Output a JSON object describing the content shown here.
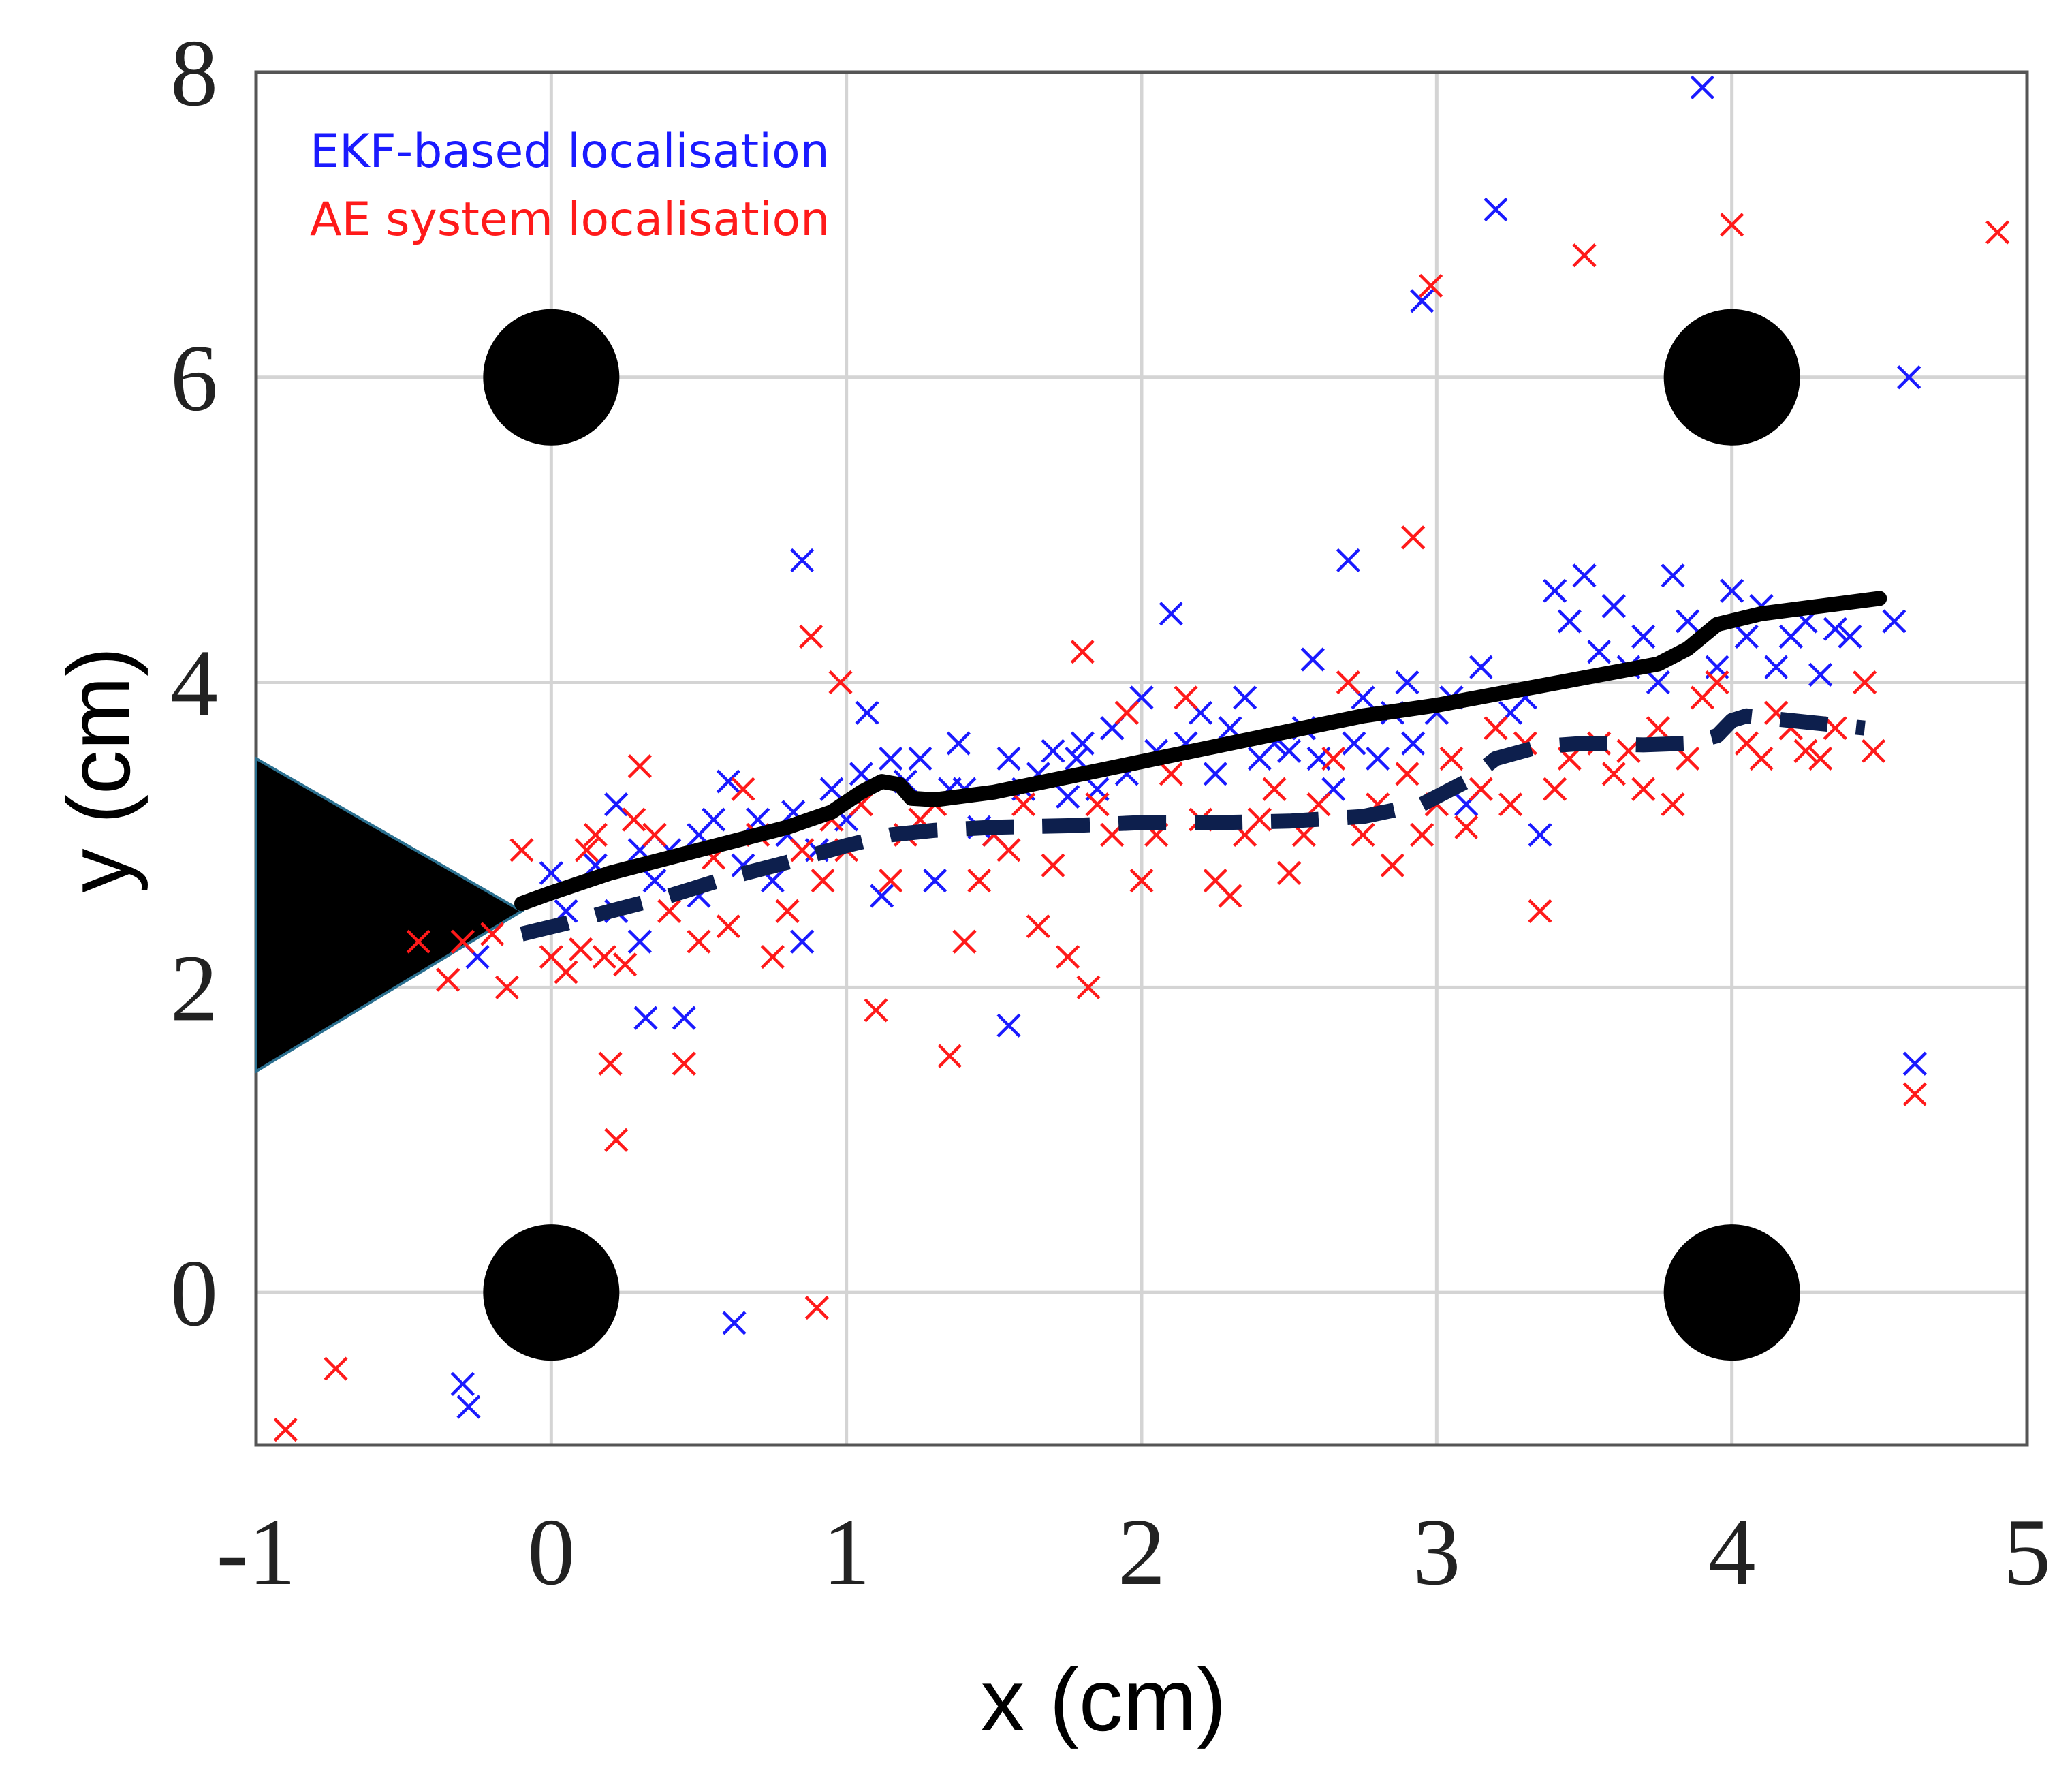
{
  "chart_data": {
    "type": "scatter",
    "title": "",
    "xlabel": "x (cm)",
    "ylabel": "y (cm)",
    "xlim": [
      -1,
      5
    ],
    "ylim": [
      -1,
      8
    ],
    "xticks": [
      "-1",
      "0",
      "1",
      "2",
      "3",
      "4",
      "5"
    ],
    "yticks": [
      "0",
      "2",
      "4",
      "6",
      "8"
    ],
    "grid": true,
    "legend_placement": "top-left",
    "legend": [
      {
        "label": "EKF-based localisation",
        "color": "#1a1aff"
      },
      {
        "label": "AE system localisation",
        "color": "#ff1a1a"
      }
    ],
    "sensors": [
      {
        "x": 0,
        "y": 6
      },
      {
        "x": 4,
        "y": 6
      },
      {
        "x": 0,
        "y": 0
      },
      {
        "x": 4,
        "y": 0
      }
    ],
    "source_triangle": [
      {
        "x": -1,
        "y": 3.5
      },
      {
        "x": -0.1,
        "y": 2.5
      },
      {
        "x": -1,
        "y": 1.45
      }
    ],
    "series": [
      {
        "name": "EKF-based localisation",
        "marker": "x",
        "color": "#1a1aff",
        "points": [
          [
            -0.3,
            -0.6
          ],
          [
            -0.28,
            -0.75
          ],
          [
            -0.25,
            2.2
          ],
          [
            0.0,
            2.75
          ],
          [
            0.05,
            2.5
          ],
          [
            0.15,
            2.8
          ],
          [
            0.22,
            2.5
          ],
          [
            0.22,
            3.2
          ],
          [
            0.3,
            2.9
          ],
          [
            0.3,
            2.3
          ],
          [
            0.32,
            1.8
          ],
          [
            0.35,
            2.7
          ],
          [
            0.4,
            2.9
          ],
          [
            0.45,
            1.8
          ],
          [
            0.5,
            3.0
          ],
          [
            0.5,
            2.6
          ],
          [
            0.55,
            3.1
          ],
          [
            0.6,
            3.35
          ],
          [
            0.62,
            -0.2
          ],
          [
            0.65,
            2.8
          ],
          [
            0.7,
            3.1
          ],
          [
            0.75,
            2.7
          ],
          [
            0.8,
            3.0
          ],
          [
            0.82,
            3.15
          ],
          [
            0.85,
            4.8
          ],
          [
            0.85,
            2.3
          ],
          [
            0.9,
            2.9
          ],
          [
            0.95,
            3.3
          ],
          [
            1.0,
            3.1
          ],
          [
            1.05,
            3.4
          ],
          [
            1.07,
            3.8
          ],
          [
            1.12,
            2.6
          ],
          [
            1.15,
            3.5
          ],
          [
            1.2,
            3.35
          ],
          [
            1.25,
            3.5
          ],
          [
            1.3,
            2.7
          ],
          [
            1.35,
            3.3
          ],
          [
            1.38,
            3.6
          ],
          [
            1.4,
            3.3
          ],
          [
            1.45,
            3.05
          ],
          [
            1.5,
            3.0
          ],
          [
            1.55,
            3.5
          ],
          [
            1.55,
            1.75
          ],
          [
            1.6,
            3.3
          ],
          [
            1.65,
            3.4
          ],
          [
            1.7,
            3.55
          ],
          [
            1.75,
            3.25
          ],
          [
            1.78,
            3.5
          ],
          [
            1.8,
            3.6
          ],
          [
            1.85,
            3.3
          ],
          [
            1.9,
            3.7
          ],
          [
            1.95,
            3.4
          ],
          [
            2.0,
            3.9
          ],
          [
            2.05,
            3.55
          ],
          [
            2.1,
            4.45
          ],
          [
            2.15,
            3.6
          ],
          [
            2.2,
            3.8
          ],
          [
            2.25,
            3.4
          ],
          [
            2.3,
            3.7
          ],
          [
            2.35,
            3.9
          ],
          [
            2.4,
            3.5
          ],
          [
            2.45,
            3.6
          ],
          [
            2.5,
            3.55
          ],
          [
            2.55,
            3.7
          ],
          [
            2.58,
            4.15
          ],
          [
            2.6,
            3.5
          ],
          [
            2.65,
            3.3
          ],
          [
            2.7,
            4.8
          ],
          [
            2.72,
            3.6
          ],
          [
            2.75,
            3.9
          ],
          [
            2.8,
            3.5
          ],
          [
            2.85,
            3.8
          ],
          [
            2.9,
            4.0
          ],
          [
            2.92,
            3.6
          ],
          [
            2.95,
            6.5
          ],
          [
            3.0,
            3.8
          ],
          [
            3.05,
            3.9
          ],
          [
            3.1,
            3.2
          ],
          [
            3.15,
            4.1
          ],
          [
            3.2,
            7.1
          ],
          [
            3.25,
            3.8
          ],
          [
            3.3,
            3.9
          ],
          [
            3.35,
            3.0
          ],
          [
            3.4,
            4.6
          ],
          [
            3.45,
            4.4
          ],
          [
            3.5,
            4.7
          ],
          [
            3.55,
            4.2
          ],
          [
            3.6,
            4.5
          ],
          [
            3.65,
            4.1
          ],
          [
            3.7,
            4.3
          ],
          [
            3.75,
            4.0
          ],
          [
            3.8,
            4.7
          ],
          [
            3.85,
            4.4
          ],
          [
            3.9,
            7.9
          ],
          [
            3.95,
            4.1
          ],
          [
            4.0,
            4.6
          ],
          [
            4.05,
            4.3
          ],
          [
            4.1,
            4.5
          ],
          [
            4.15,
            4.1
          ],
          [
            4.2,
            4.3
          ],
          [
            4.25,
            4.4
          ],
          [
            4.3,
            4.05
          ],
          [
            4.35,
            4.35
          ],
          [
            4.4,
            4.3
          ],
          [
            4.55,
            4.4
          ],
          [
            4.6,
            6.0
          ],
          [
            4.62,
            1.5
          ]
        ]
      },
      {
        "name": "AE system localisation",
        "marker": "x",
        "color": "#ff1a1a",
        "points": [
          [
            -0.9,
            -0.9
          ],
          [
            -0.73,
            -0.5
          ],
          [
            -0.45,
            2.3
          ],
          [
            -0.35,
            2.05
          ],
          [
            -0.3,
            2.3
          ],
          [
            -0.2,
            2.35
          ],
          [
            -0.15,
            2.0
          ],
          [
            -0.1,
            2.9
          ],
          [
            0.0,
            2.2
          ],
          [
            0.05,
            2.1
          ],
          [
            0.1,
            2.25
          ],
          [
            0.12,
            2.9
          ],
          [
            0.15,
            3.0
          ],
          [
            0.18,
            2.2
          ],
          [
            0.2,
            1.5
          ],
          [
            0.22,
            1.0
          ],
          [
            0.25,
            2.15
          ],
          [
            0.28,
            3.1
          ],
          [
            0.3,
            3.45
          ],
          [
            0.35,
            3.0
          ],
          [
            0.4,
            2.5
          ],
          [
            0.45,
            1.5
          ],
          [
            0.5,
            2.3
          ],
          [
            0.55,
            2.85
          ],
          [
            0.6,
            2.4
          ],
          [
            0.65,
            3.3
          ],
          [
            0.7,
            3.0
          ],
          [
            0.75,
            2.2
          ],
          [
            0.8,
            2.5
          ],
          [
            0.85,
            2.9
          ],
          [
            0.88,
            4.3
          ],
          [
            0.9,
            -0.1
          ],
          [
            0.92,
            2.7
          ],
          [
            0.95,
            3.1
          ],
          [
            0.98,
            4.0
          ],
          [
            1.0,
            2.9
          ],
          [
            1.05,
            3.2
          ],
          [
            1.1,
            1.85
          ],
          [
            1.15,
            2.7
          ],
          [
            1.2,
            3.0
          ],
          [
            1.25,
            3.1
          ],
          [
            1.3,
            3.2
          ],
          [
            1.35,
            1.55
          ],
          [
            1.4,
            2.3
          ],
          [
            1.45,
            2.7
          ],
          [
            1.5,
            3.0
          ],
          [
            1.55,
            2.9
          ],
          [
            1.6,
            3.2
          ],
          [
            1.65,
            2.4
          ],
          [
            1.7,
            2.8
          ],
          [
            1.75,
            2.2
          ],
          [
            1.8,
            4.2
          ],
          [
            1.82,
            2.0
          ],
          [
            1.85,
            3.2
          ],
          [
            1.9,
            3.0
          ],
          [
            1.95,
            3.8
          ],
          [
            2.0,
            2.7
          ],
          [
            2.05,
            3.0
          ],
          [
            2.1,
            3.4
          ],
          [
            2.15,
            3.9
          ],
          [
            2.2,
            3.1
          ],
          [
            2.25,
            2.7
          ],
          [
            2.3,
            2.6
          ],
          [
            2.35,
            3.0
          ],
          [
            2.4,
            3.1
          ],
          [
            2.45,
            3.3
          ],
          [
            2.5,
            2.75
          ],
          [
            2.55,
            3.0
          ],
          [
            2.6,
            3.2
          ],
          [
            2.65,
            3.5
          ],
          [
            2.7,
            4.0
          ],
          [
            2.75,
            3.0
          ],
          [
            2.8,
            3.2
          ],
          [
            2.85,
            2.8
          ],
          [
            2.9,
            3.4
          ],
          [
            2.92,
            4.95
          ],
          [
            2.95,
            3.0
          ],
          [
            2.98,
            6.6
          ],
          [
            3.0,
            3.2
          ],
          [
            3.05,
            3.5
          ],
          [
            3.1,
            3.05
          ],
          [
            3.15,
            3.3
          ],
          [
            3.2,
            3.7
          ],
          [
            3.25,
            3.2
          ],
          [
            3.3,
            3.6
          ],
          [
            3.35,
            2.5
          ],
          [
            3.4,
            3.3
          ],
          [
            3.45,
            3.5
          ],
          [
            3.5,
            6.8
          ],
          [
            3.55,
            3.6
          ],
          [
            3.6,
            3.4
          ],
          [
            3.65,
            3.55
          ],
          [
            3.7,
            3.3
          ],
          [
            3.75,
            3.7
          ],
          [
            3.8,
            3.2
          ],
          [
            3.85,
            3.5
          ],
          [
            3.9,
            3.9
          ],
          [
            3.95,
            4.0
          ],
          [
            4.0,
            7.0
          ],
          [
            4.05,
            3.6
          ],
          [
            4.1,
            3.5
          ],
          [
            4.15,
            3.8
          ],
          [
            4.2,
            3.7
          ],
          [
            4.25,
            3.55
          ],
          [
            4.3,
            3.5
          ],
          [
            4.35,
            3.7
          ],
          [
            4.45,
            4.0
          ],
          [
            4.48,
            3.55
          ],
          [
            4.62,
            1.3
          ],
          [
            4.9,
            6.95
          ]
        ]
      },
      {
        "name": "trajectory-solid",
        "style": "solid-line",
        "color": "#000000",
        "points": [
          [
            -0.1,
            2.55
          ],
          [
            0.0,
            2.62
          ],
          [
            0.2,
            2.75
          ],
          [
            0.4,
            2.85
          ],
          [
            0.6,
            2.95
          ],
          [
            0.8,
            3.05
          ],
          [
            0.95,
            3.15
          ],
          [
            1.05,
            3.28
          ],
          [
            1.12,
            3.35
          ],
          [
            1.18,
            3.33
          ],
          [
            1.22,
            3.24
          ],
          [
            1.3,
            3.23
          ],
          [
            1.5,
            3.28
          ],
          [
            1.75,
            3.38
          ],
          [
            2.0,
            3.48
          ],
          [
            2.25,
            3.58
          ],
          [
            2.5,
            3.68
          ],
          [
            2.75,
            3.78
          ],
          [
            3.0,
            3.85
          ],
          [
            3.25,
            3.94
          ],
          [
            3.5,
            4.03
          ],
          [
            3.75,
            4.12
          ],
          [
            3.85,
            4.22
          ],
          [
            3.95,
            4.38
          ],
          [
            4.1,
            4.45
          ],
          [
            4.3,
            4.5
          ],
          [
            4.5,
            4.55
          ]
        ]
      },
      {
        "name": "trajectory-dashed",
        "style": "dashed-line",
        "color": "#0d1f4d",
        "points": [
          [
            -0.1,
            2.35
          ],
          [
            0.05,
            2.42
          ],
          [
            0.2,
            2.5
          ],
          [
            0.4,
            2.6
          ],
          [
            0.6,
            2.72
          ],
          [
            0.8,
            2.82
          ],
          [
            1.0,
            2.93
          ],
          [
            1.15,
            3.0
          ],
          [
            1.3,
            3.03
          ],
          [
            1.5,
            3.05
          ],
          [
            1.75,
            3.06
          ],
          [
            2.0,
            3.08
          ],
          [
            2.25,
            3.08
          ],
          [
            2.5,
            3.09
          ],
          [
            2.75,
            3.12
          ],
          [
            2.95,
            3.2
          ],
          [
            3.1,
            3.35
          ],
          [
            3.2,
            3.5
          ],
          [
            3.35,
            3.58
          ],
          [
            3.5,
            3.6
          ],
          [
            3.7,
            3.59
          ],
          [
            3.85,
            3.6
          ],
          [
            3.95,
            3.65
          ],
          [
            4.0,
            3.75
          ],
          [
            4.05,
            3.78
          ],
          [
            4.2,
            3.75
          ],
          [
            4.35,
            3.72
          ],
          [
            4.45,
            3.7
          ]
        ]
      }
    ]
  }
}
